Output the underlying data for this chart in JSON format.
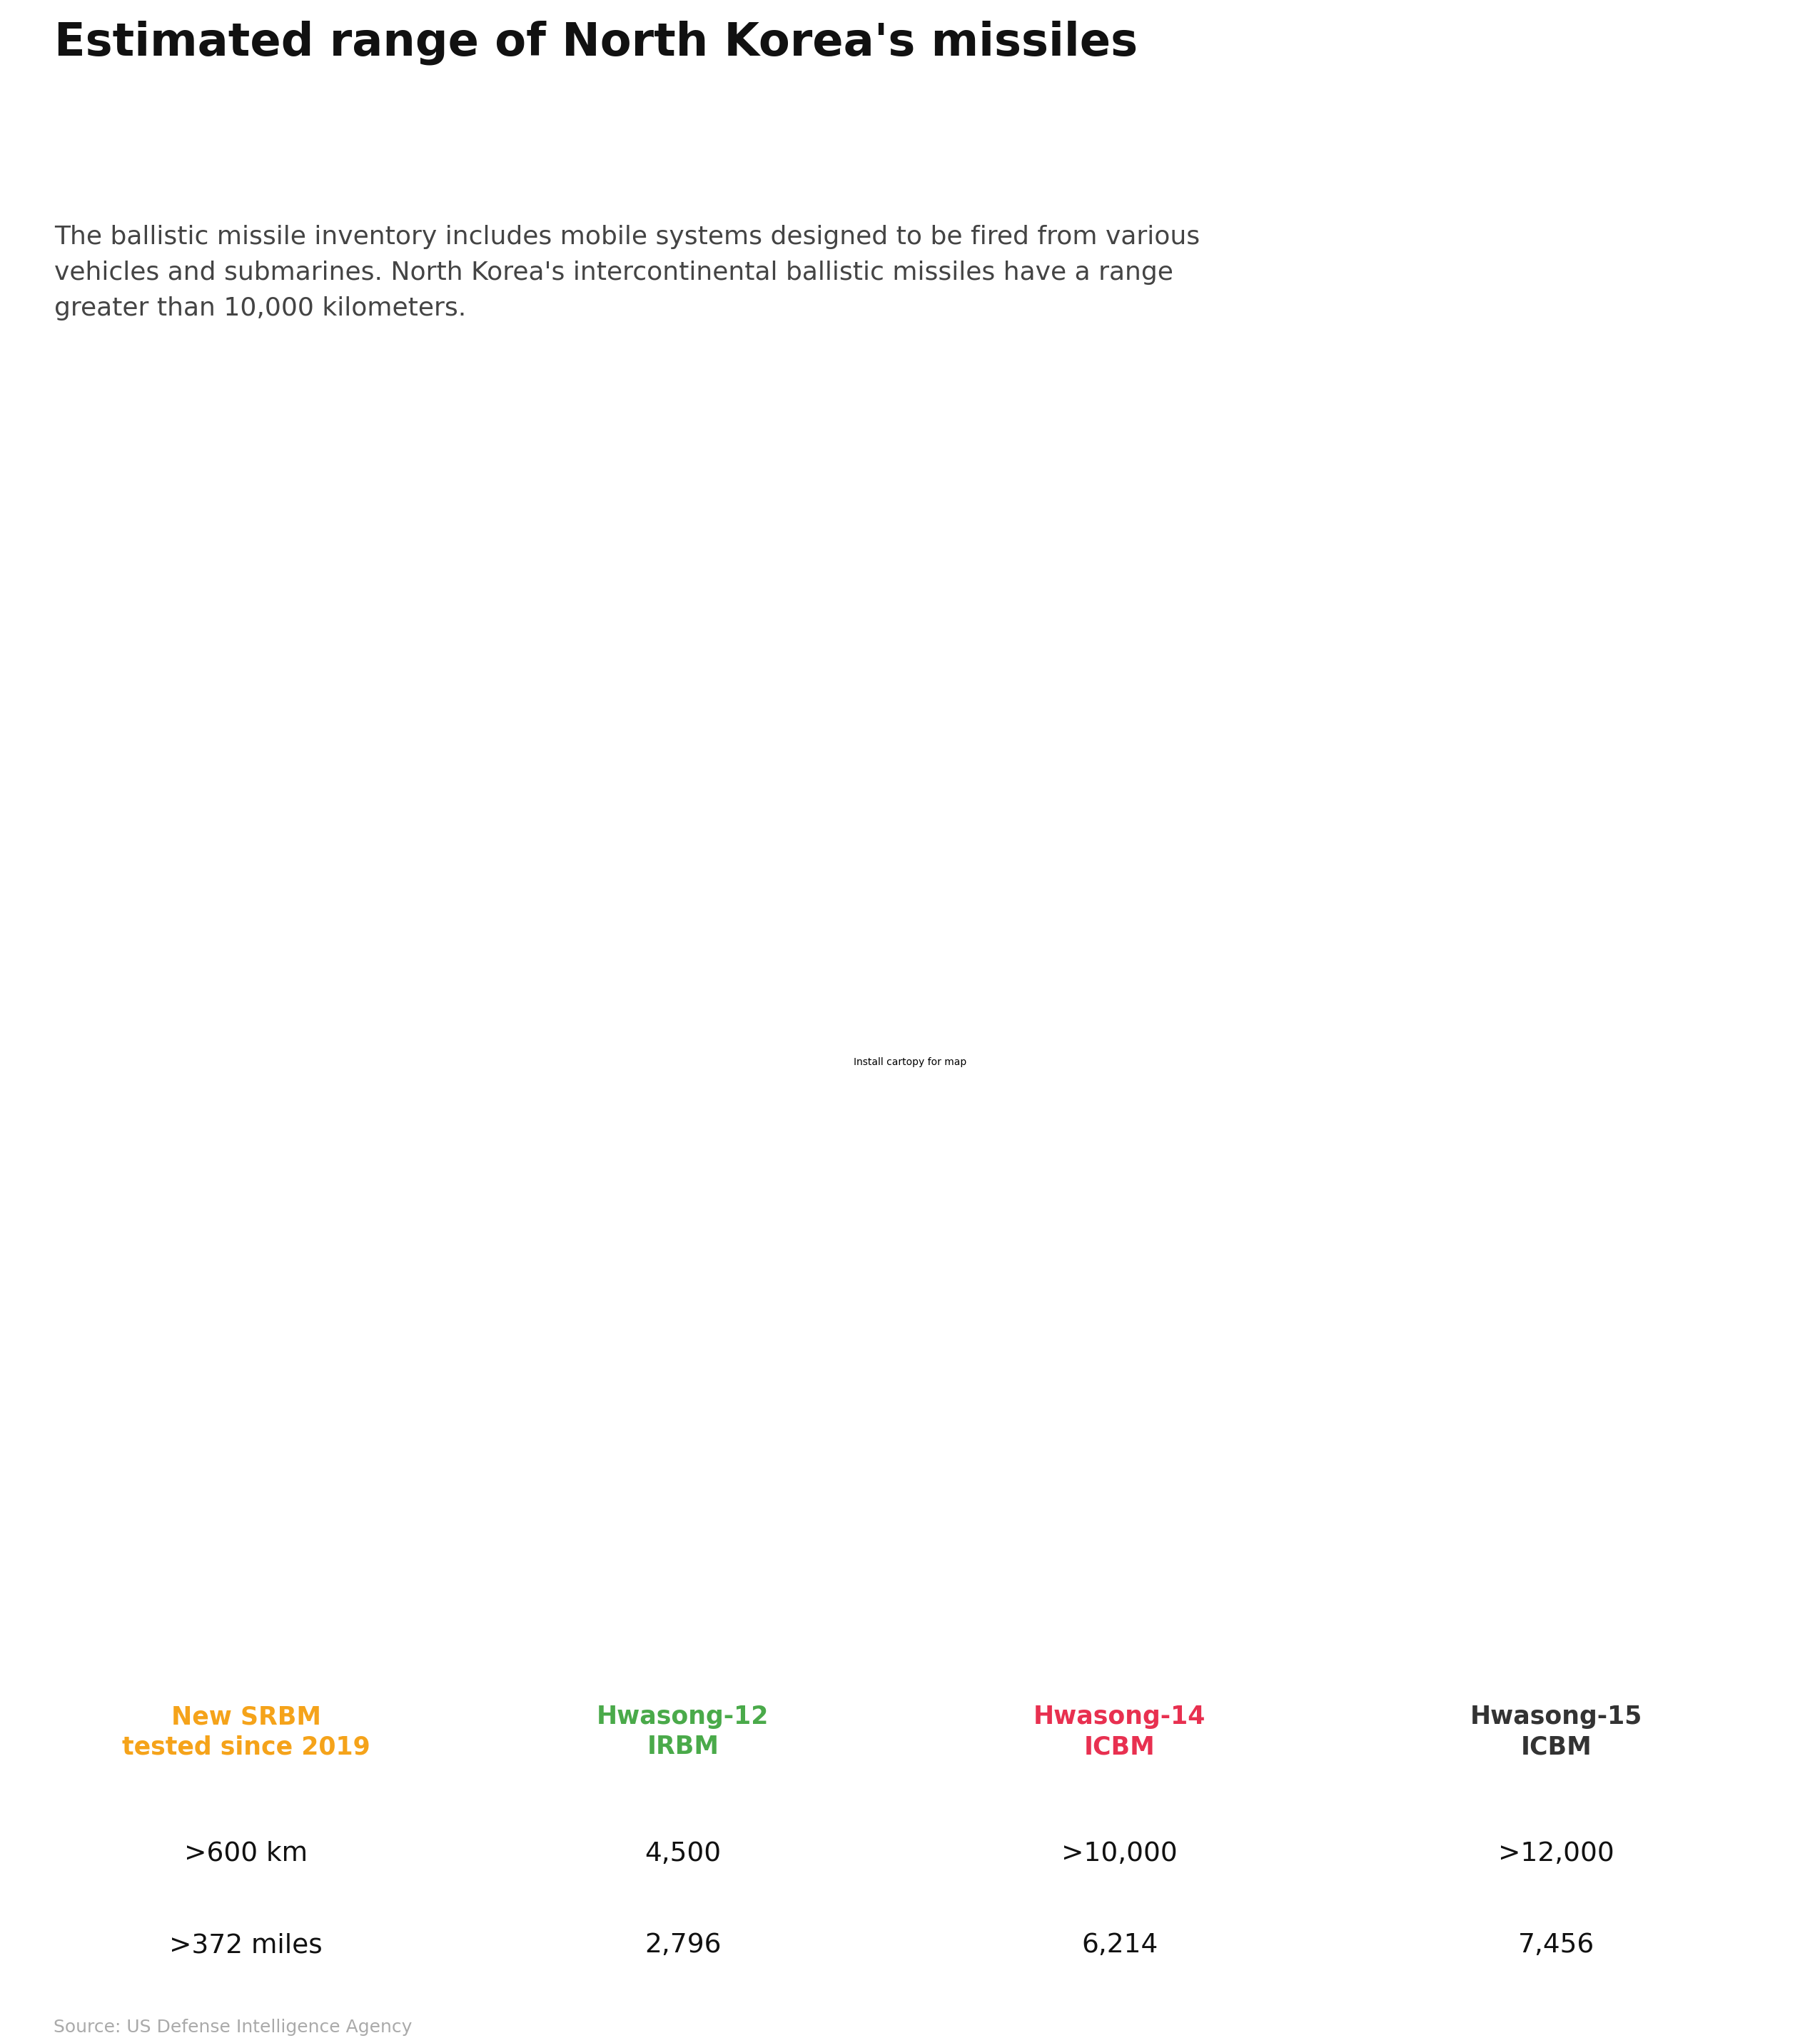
{
  "title": "Estimated range of North Korea's missiles",
  "subtitle": "The ballistic missile inventory includes mobile systems designed to be fired from various\nvehicles and submarines. North Korea's intercontinental ballistic missiles have a range\ngreater than 10,000 kilometers.",
  "source": "Source: US Defense Intelligence Agency",
  "background_color": "#ffffff",
  "ocean_color": "#daeaf5",
  "land_color": "#e8e4de",
  "land_edge_color": "#b8cdd8",
  "legend": [
    {
      "label": "New SRBM\ntested since 2019",
      "color": "#f5a31a",
      "km": ">600 km",
      "miles": ">372 miles"
    },
    {
      "label": "Hwasong-12\nIRBM",
      "color": "#4aaa4a",
      "km": "4,500",
      "miles": "2,796"
    },
    {
      "label": "Hwasong-14\nICBM",
      "color": "#e83050",
      "km": ">10,000",
      "miles": "6,214"
    },
    {
      "label": "Hwasong-15\nICBM",
      "color": "#333333",
      "km": ">12,000",
      "miles": "7,456"
    }
  ],
  "nk_lon": 127.0,
  "nk_lat": 40.0,
  "projection_lon": 170.0,
  "projection_lat": 50.0,
  "dot_size": 55
}
